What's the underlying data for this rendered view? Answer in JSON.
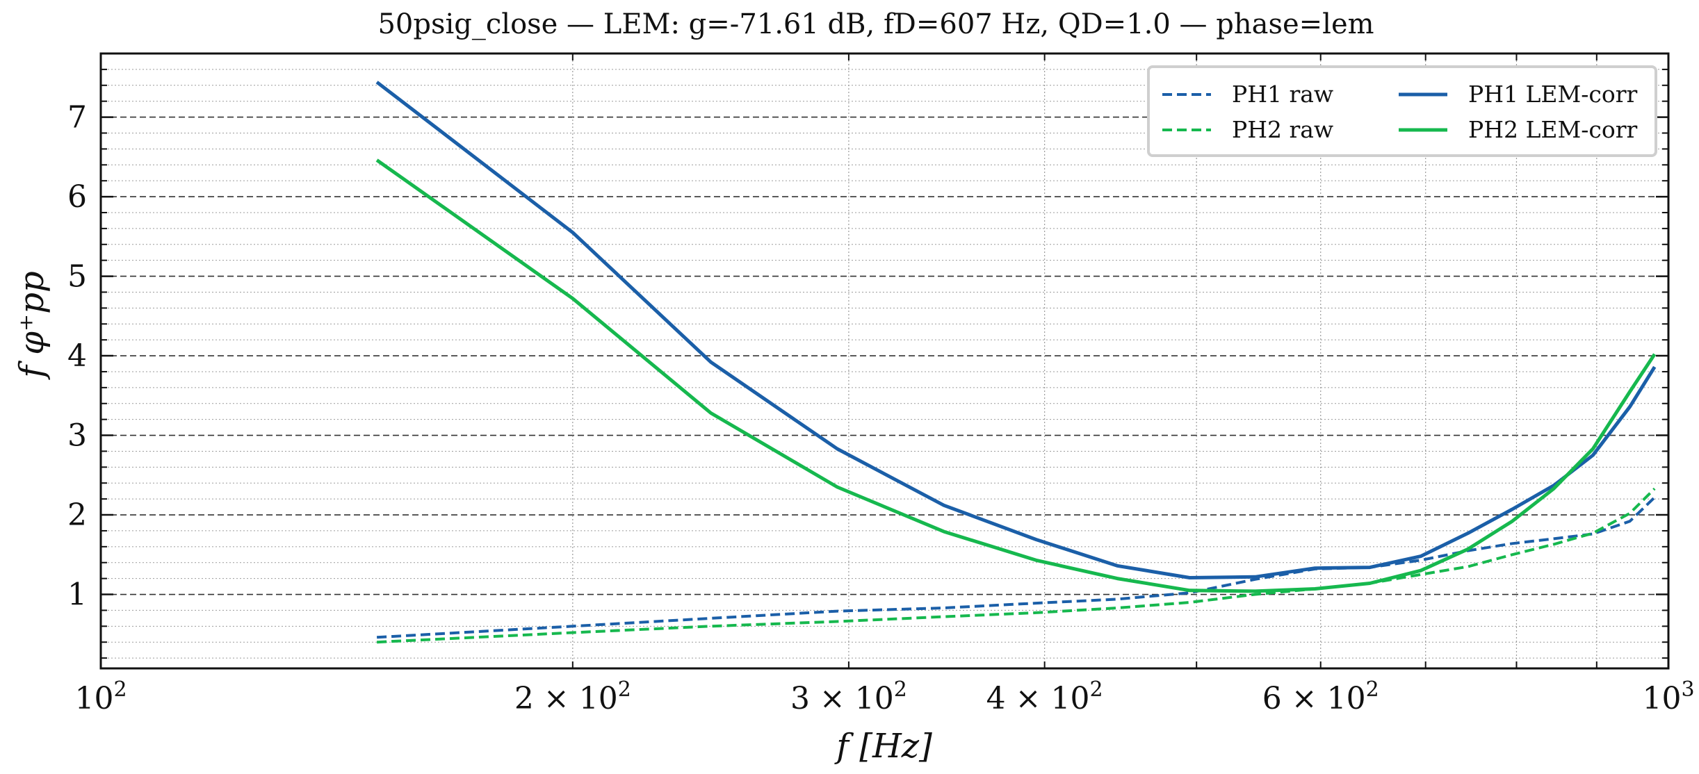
{
  "chart_data": {
    "type": "line",
    "title": "50psig_close — LEM: g=-71.61 dB, fD=607 Hz, QD=1.0 — phase=lem",
    "xlabel": "f [Hz]",
    "ylabel": "f φ⁺pp",
    "xscale": "log",
    "xlim": [
      100,
      1000
    ],
    "ylim": [
      0.07,
      7.8
    ],
    "grid": true,
    "legend_position": "top-right",
    "x_ticks": [
      {
        "value": 100,
        "base": "10",
        "exp": "2",
        "coef": ""
      },
      {
        "value": 200,
        "base": "10",
        "exp": "2",
        "coef": "2 × "
      },
      {
        "value": 300,
        "base": "10",
        "exp": "2",
        "coef": "3 × "
      },
      {
        "value": 400,
        "base": "10",
        "exp": "2",
        "coef": "4 × "
      },
      {
        "value": 600,
        "base": "10",
        "exp": "2",
        "coef": "6 × "
      },
      {
        "value": 1000,
        "base": "10",
        "exp": "3",
        "coef": ""
      }
    ],
    "y_ticks": [
      1,
      2,
      3,
      4,
      5,
      6,
      7
    ],
    "series": [
      {
        "name": "PH1 raw",
        "color": "#1b5fa8",
        "style": "dashed",
        "x": [
          150,
          200,
          245,
          295,
          345,
          395,
          445,
          495,
          545,
          595,
          645,
          695,
          745,
          795,
          845,
          895,
          945,
          980
        ],
        "y": [
          0.46,
          0.6,
          0.7,
          0.79,
          0.83,
          0.89,
          0.94,
          1.02,
          1.19,
          1.32,
          1.34,
          1.43,
          1.55,
          1.64,
          1.7,
          1.76,
          1.92,
          2.22
        ]
      },
      {
        "name": "PH2 raw",
        "color": "#16b84e",
        "style": "dashed",
        "x": [
          150,
          200,
          245,
          295,
          345,
          395,
          445,
          495,
          545,
          595,
          645,
          695,
          745,
          795,
          845,
          895,
          945,
          980
        ],
        "y": [
          0.4,
          0.52,
          0.6,
          0.66,
          0.72,
          0.77,
          0.83,
          0.9,
          1.0,
          1.07,
          1.14,
          1.25,
          1.35,
          1.5,
          1.63,
          1.77,
          2.02,
          2.33
        ]
      },
      {
        "name": "PH1 LEM-corr",
        "color": "#1b5fa8",
        "style": "solid",
        "x": [
          150,
          200,
          245,
          295,
          345,
          395,
          445,
          495,
          545,
          595,
          645,
          695,
          745,
          795,
          845,
          895,
          945,
          980
        ],
        "y": [
          7.44,
          5.55,
          3.92,
          2.83,
          2.12,
          1.69,
          1.36,
          1.21,
          1.22,
          1.33,
          1.34,
          1.48,
          1.77,
          2.07,
          2.37,
          2.75,
          3.36,
          3.86
        ]
      },
      {
        "name": "PH2 LEM-corr",
        "color": "#16b84e",
        "style": "solid",
        "x": [
          150,
          200,
          245,
          295,
          345,
          395,
          445,
          495,
          545,
          595,
          645,
          695,
          745,
          795,
          845,
          895,
          945,
          980
        ],
        "y": [
          6.46,
          4.72,
          3.28,
          2.35,
          1.79,
          1.43,
          1.2,
          1.05,
          1.04,
          1.07,
          1.14,
          1.3,
          1.57,
          1.92,
          2.33,
          2.83,
          3.55,
          4.02
        ]
      }
    ]
  }
}
